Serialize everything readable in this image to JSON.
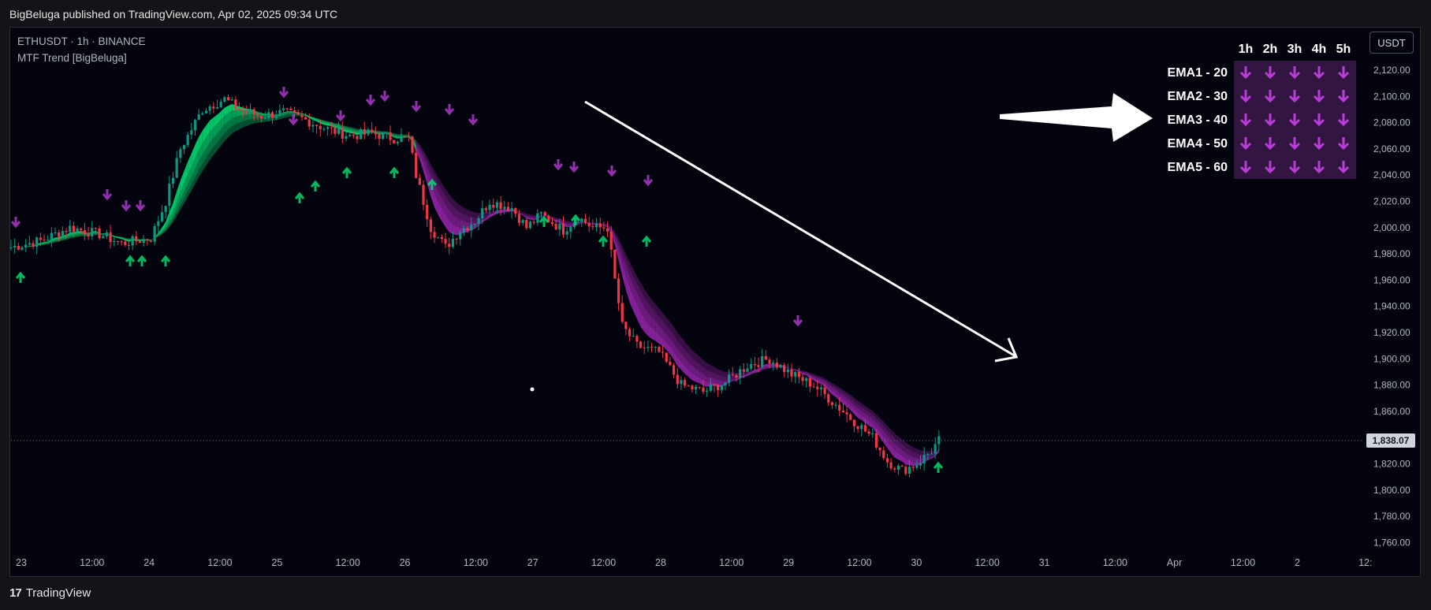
{
  "header": {
    "published": "BigBeluga published on TradingView.com, Apr 02, 2025 09:34 UTC"
  },
  "legend": {
    "symbol": "ETHUSDT · 1h · BINANCE",
    "indicator": "MTF Trend [BigBeluga]"
  },
  "currency_button": "USDT",
  "footer": {
    "brand": "TradingView"
  },
  "colors": {
    "background": "#04040e",
    "bull_candle": "#089981",
    "bear_candle": "#f23645",
    "bull_band": "#00e676",
    "bear_band": "#9c27b0",
    "table_bg": "#3b1a4a",
    "arrow_down": "#b83cd6"
  },
  "chart_data": {
    "type": "candlestick",
    "symbol": "ETHUSDT",
    "interval": "1h",
    "exchange": "BINANCE",
    "last_price": "1,838.07",
    "y_axis": {
      "ticks": [
        "2,120.00",
        "2,100.00",
        "2,080.00",
        "2,060.00",
        "2,040.00",
        "2,020.00",
        "2,000.00",
        "1,980.00",
        "1,960.00",
        "1,940.00",
        "1,920.00",
        "1,900.00",
        "1,880.00",
        "1,860.00",
        "1,840.00",
        "1,820.00",
        "1,800.00",
        "1,780.00",
        "1,760.00"
      ],
      "range": [
        1755,
        2130
      ]
    },
    "x_axis": {
      "ticks": [
        "23",
        "12:00",
        "24",
        "12:00",
        "25",
        "12:00",
        "26",
        "12:00",
        "27",
        "12:00",
        "28",
        "12:00",
        "29",
        "12:00",
        "30",
        "12:00",
        "31",
        "12:00",
        "Apr",
        "12:00",
        "2",
        "12:"
      ]
    },
    "price_path": [
      [
        0,
        1985
      ],
      [
        8,
        1990
      ],
      [
        16,
        2000
      ],
      [
        24,
        1995
      ],
      [
        30,
        1988
      ],
      [
        38,
        1992
      ],
      [
        42,
        2020
      ],
      [
        46,
        2060
      ],
      [
        52,
        2090
      ],
      [
        58,
        2098
      ],
      [
        62,
        2090
      ],
      [
        68,
        2085
      ],
      [
        74,
        2088
      ],
      [
        80,
        2082
      ],
      [
        86,
        2075
      ],
      [
        92,
        2070
      ],
      [
        98,
        2072
      ],
      [
        104,
        2068
      ],
      [
        108,
        2068
      ],
      [
        110,
        2040
      ],
      [
        114,
        2000
      ],
      [
        118,
        1985
      ],
      [
        122,
        1998
      ],
      [
        126,
        2005
      ],
      [
        130,
        2020
      ],
      [
        136,
        2015
      ],
      [
        140,
        2000
      ],
      [
        144,
        2010
      ],
      [
        150,
        1998
      ],
      [
        154,
        2008
      ],
      [
        158,
        2000
      ],
      [
        162,
        2000
      ],
      [
        164,
        1960
      ],
      [
        166,
        1925
      ],
      [
        170,
        1910
      ],
      [
        176,
        1905
      ],
      [
        182,
        1880
      ],
      [
        188,
        1875
      ],
      [
        194,
        1882
      ],
      [
        200,
        1895
      ],
      [
        206,
        1900
      ],
      [
        212,
        1888
      ],
      [
        218,
        1880
      ],
      [
        224,
        1865
      ],
      [
        230,
        1850
      ],
      [
        234,
        1840
      ],
      [
        238,
        1822
      ],
      [
        242,
        1815
      ],
      [
        246,
        1820
      ],
      [
        250,
        1830
      ],
      [
        252,
        1838
      ]
    ],
    "ema_table": {
      "columns": [
        "1h",
        "2h",
        "3h",
        "4h",
        "5h"
      ],
      "rows": [
        {
          "label": "EMA1 - 20",
          "signals": [
            "down",
            "down",
            "down",
            "down",
            "down"
          ]
        },
        {
          "label": "EMA2 - 30",
          "signals": [
            "down",
            "down",
            "down",
            "down",
            "down"
          ]
        },
        {
          "label": "EMA3 - 40",
          "signals": [
            "down",
            "down",
            "down",
            "down",
            "down"
          ]
        },
        {
          "label": "EMA4 - 50",
          "signals": [
            "down",
            "down",
            "down",
            "down",
            "down"
          ]
        },
        {
          "label": "EMA5 - 60",
          "signals": [
            "down",
            "down",
            "down",
            "down",
            "down"
          ]
        }
      ]
    }
  }
}
